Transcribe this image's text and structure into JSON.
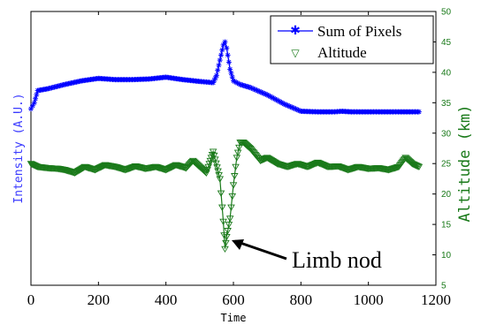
{
  "chart_data": {
    "type": "line",
    "title": "",
    "xlabel": "Time",
    "ylabel_left": "Intensity (A.U.)",
    "ylabel_right": "Altitude (km)",
    "xlim": [
      0,
      1200
    ],
    "ylim_right": [
      5,
      50
    ],
    "xticks": [
      "0",
      "200",
      "400",
      "600",
      "800",
      "1000",
      "1200"
    ],
    "yticks_right": [
      "5",
      "10",
      "15",
      "20",
      "25",
      "30",
      "35",
      "40",
      "45",
      "50"
    ],
    "grid": false,
    "legend_position": "top-right",
    "series": [
      {
        "name": "Sum of Pixels",
        "marker": "asterisk",
        "color": "#0000ff",
        "axis": "left",
        "x": [
          0,
          5,
          10,
          20,
          50,
          100,
          150,
          200,
          250,
          300,
          350,
          400,
          450,
          500,
          540,
          550,
          560,
          570,
          575,
          580,
          590,
          600,
          620,
          650,
          700,
          750,
          800,
          850,
          900,
          920,
          950,
          1000,
          1050,
          1100,
          1150
        ],
        "values": [
          34,
          34.5,
          35,
          37,
          37.3,
          38,
          38.6,
          39,
          38.8,
          38.8,
          38.9,
          39.2,
          38.8,
          38.5,
          38.3,
          39.5,
          42,
          44.5,
          45,
          44,
          40.5,
          38.6,
          38,
          37.5,
          36.3,
          34.8,
          33.6,
          33.5,
          33.5,
          33.6,
          33.5,
          33.5,
          33.5,
          33.5,
          33.5
        ]
      },
      {
        "name": "Altitude",
        "marker": "triangle-down",
        "color": "#1a7a1a",
        "axis": "right",
        "x": [
          0,
          20,
          50,
          80,
          100,
          130,
          160,
          190,
          220,
          250,
          280,
          310,
          340,
          370,
          400,
          430,
          460,
          480,
          500,
          520,
          540,
          560,
          570,
          575,
          580,
          590,
          600,
          610,
          620,
          630,
          650,
          680,
          700,
          730,
          760,
          790,
          820,
          850,
          880,
          910,
          940,
          970,
          1000,
          1030,
          1060,
          1090,
          1110,
          1130,
          1150
        ],
        "values": [
          25,
          24.5,
          24.3,
          24.2,
          24,
          23.5,
          24.5,
          24,
          24.8,
          24.5,
          24,
          24.6,
          24.2,
          24.5,
          24,
          24.8,
          24.3,
          25.5,
          24.5,
          23.5,
          27,
          22.5,
          15.5,
          11,
          13,
          16,
          21.5,
          26,
          28.5,
          28.5,
          27.5,
          25.5,
          26,
          25,
          24.5,
          25,
          24.5,
          25.2,
          24.5,
          24.6,
          24,
          24.5,
          24.2,
          24.3,
          24,
          24.5,
          26,
          25,
          24.5
        ]
      }
    ],
    "annotation": {
      "text": "Limb nod",
      "target_x": 577,
      "target_y": 11
    }
  }
}
